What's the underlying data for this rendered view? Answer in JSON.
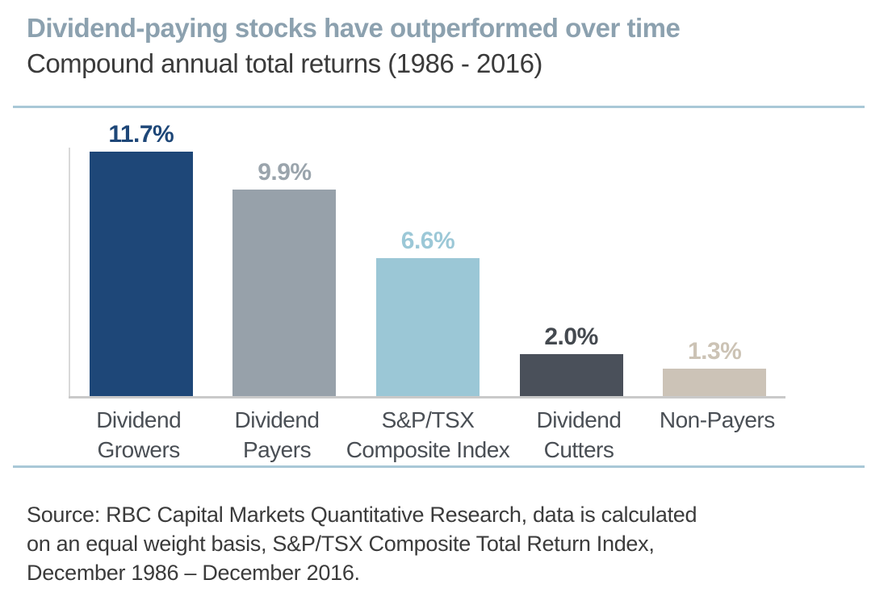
{
  "header": {
    "title": "Dividend-paying stocks have outperformed over time",
    "subtitle": "Compound annual total returns (1986 - 2016)"
  },
  "chart_data": {
    "type": "bar",
    "title": "Dividend-paying stocks have outperformed over time",
    "subtitle": "Compound annual total returns (1986 - 2016)",
    "categories": [
      "Dividend Growers",
      "Dividend Payers",
      "S&P/TSX Composite Index",
      "Dividend Cutters",
      "Non-Payers"
    ],
    "category_lines": [
      [
        "Dividend",
        "Growers"
      ],
      [
        "Dividend",
        "Payers"
      ],
      [
        "S&P/TSX",
        "Composite Index"
      ],
      [
        "Dividend",
        "Cutters"
      ],
      [
        "Non-Payers"
      ]
    ],
    "values": [
      11.7,
      9.9,
      6.6,
      2.0,
      1.3
    ],
    "value_labels": [
      "11.7%",
      "9.9%",
      "6.6%",
      "2.0%",
      "1.3%"
    ],
    "bar_colors": [
      "#1E4778",
      "#97A1AA",
      "#9BC7D6",
      "#4A505A",
      "#CCC3B7"
    ],
    "label_colors": [
      "#1E4778",
      "#9AA4AC",
      "#9CC8D7",
      "#44494F",
      "#CCC3B5"
    ],
    "xlabel": "",
    "ylabel": "",
    "ylim": [
      0,
      12
    ],
    "grid": false,
    "legend": false
  },
  "source": {
    "line1": "Source: RBC Capital Markets Quantitative Research, data is calculated",
    "line2": "on an equal weight basis, S&P/TSX Composite Total Return Index,",
    "line3": "December 1986 – December 2016."
  },
  "colors": {
    "title_text": "#8CA1AF",
    "body_text": "#3B3B3B",
    "divider": "#A9C8D7",
    "axis": "#D9D9D9",
    "baseline": "#C9C9C9",
    "category_text": "#4A4F55"
  }
}
